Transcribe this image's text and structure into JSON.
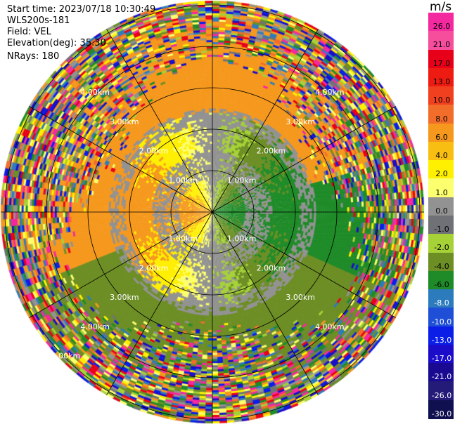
{
  "info": {
    "start_time": "Start time: 2023/07/18 10:30:49",
    "station": "WLS200s-181",
    "field": "Field: VEL",
    "elevation": "Elevation(deg): 35.30",
    "nrays": "NRays: 180"
  },
  "chart_data": {
    "type": "heatmap",
    "projection": "polar PPI",
    "field": "VEL",
    "unit": "m/s",
    "range_ring_labels": [
      "1.00km",
      "2.00km",
      "3.00km",
      "4.00km",
      "5.00km"
    ],
    "colorbar": {
      "unit_label": "m/s",
      "ticks": [
        "26.0",
        "21.0",
        "17.0",
        "13.0",
        "10.0",
        "8.0",
        "6.0",
        "4.0",
        "2.0",
        "1.0",
        "0.0",
        "-1.0",
        "-2.0",
        "-4.0",
        "-6.0",
        "-8.0",
        "-10.0",
        "-13.0",
        "-17.0",
        "-21.0",
        "-26.0",
        "-30.0"
      ],
      "colors": [
        "#f4289f",
        "#f74d9d",
        "#e8001a",
        "#ee1b12",
        "#f0401f",
        "#f26d2a",
        "#f5981d",
        "#f8be12",
        "#ffef00",
        "#fcff6e",
        "#929292",
        "#6f7176",
        "#a6d137",
        "#6c8e24",
        "#1e8b28",
        "#2c7bbd",
        "#1f4fd6",
        "#0a1ee8",
        "#1a0cc8",
        "#1a0a92",
        "#241a78",
        "#101050"
      ]
    }
  }
}
